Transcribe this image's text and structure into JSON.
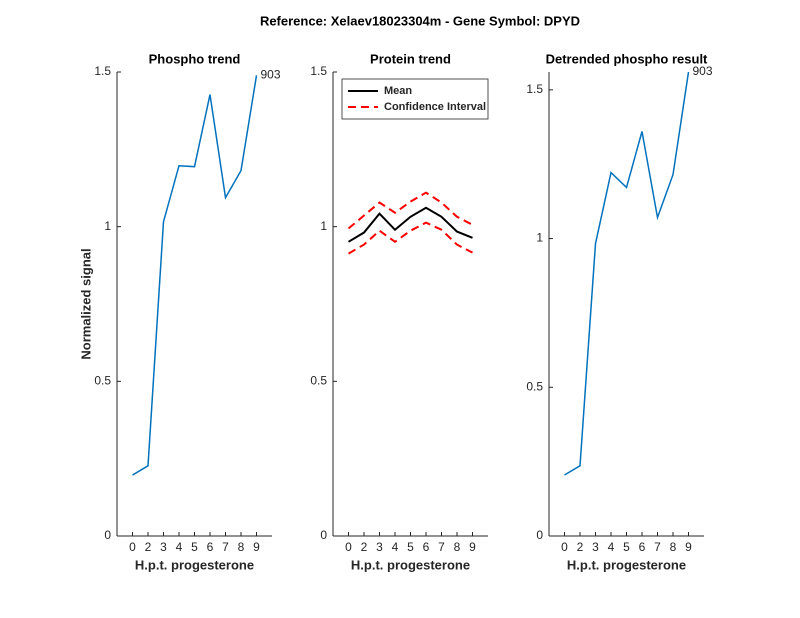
{
  "title": "Reference:  Xelaev18023304m - Gene Symbol:  DPYD",
  "chart_data": [
    {
      "type": "line",
      "title": "Phospho trend",
      "xlabel": "H.p.t. progesterone",
      "ylabel": "Normalized signal",
      "categories": [
        "0",
        "2",
        "3",
        "4",
        "5",
        "6",
        "7",
        "8",
        "9"
      ],
      "series": [
        {
          "color": "#0072bd",
          "label": "903",
          "values": [
            0.197,
            0.227,
            1.016,
            1.197,
            1.194,
            1.427,
            1.094,
            1.181,
            1.489
          ]
        }
      ],
      "ylim": [
        0,
        1.5
      ],
      "yticks": [
        0,
        0.5,
        1,
        1.5
      ]
    },
    {
      "type": "line",
      "title": "Protein trend",
      "xlabel": "H.p.t. progesterone",
      "categories": [
        "0",
        "2",
        "3",
        "4",
        "5",
        "6",
        "7",
        "8",
        "9"
      ],
      "series": [
        {
          "name": "Mean",
          "color": "#000000",
          "values": [
            0.951,
            0.981,
            1.042,
            0.99,
            1.032,
            1.061,
            1.032,
            0.984,
            0.964
          ]
        },
        {
          "name": "Confidence Interval",
          "color": "#ff0000",
          "dashed": true,
          "values": [
            0.994,
            1.036,
            1.078,
            1.045,
            1.081,
            1.11,
            1.078,
            1.032,
            1.006
          ],
          "lower": [
            0.913,
            0.942,
            0.987,
            0.951,
            0.987,
            1.013,
            0.99,
            0.942,
            0.916
          ]
        }
      ],
      "legend": "northwest",
      "ylim": [
        0,
        1.5
      ],
      "yticks": [
        0,
        0.5,
        1,
        1.5
      ]
    },
    {
      "type": "line",
      "title": "Detrended phospho result",
      "xlabel": "H.p.t. progesterone",
      "categories": [
        "0",
        "2",
        "3",
        "4",
        "5",
        "6",
        "7",
        "8",
        "9"
      ],
      "series": [
        {
          "color": "#0072bd",
          "label": "903",
          "values": [
            0.205,
            0.236,
            0.983,
            1.222,
            1.172,
            1.36,
            1.071,
            1.215,
            1.56
          ]
        }
      ],
      "ylim": [
        0,
        1.56
      ],
      "yticks": [
        0,
        0.5,
        1,
        1.5
      ]
    }
  ]
}
